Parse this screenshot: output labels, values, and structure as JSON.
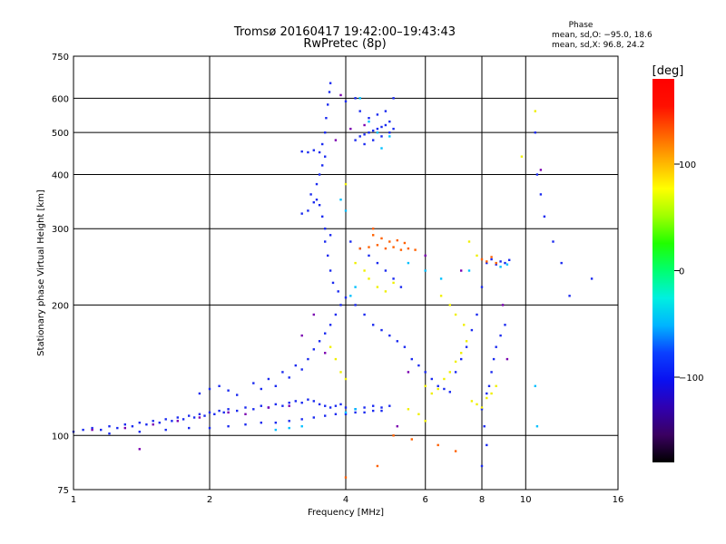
{
  "chart_data": {
    "type": "scatter",
    "title": "Tromsø 20160417 19:42:00–19:43:43",
    "subtitle": "RwPretec (8p)",
    "xlabel": "Frequency [MHz]",
    "ylabel": "Stationary phase Virtual Height [km]",
    "x_scale": "log",
    "y_scale": "log",
    "xlim": [
      1,
      16
    ],
    "ylim": [
      75,
      750
    ],
    "x_ticks": [
      1,
      2,
      4,
      6,
      8,
      10,
      16
    ],
    "x_tick_labels": [
      "1",
      "2",
      "4",
      "6",
      "8",
      "10",
      "16"
    ],
    "y_ticks": [
      75,
      100,
      200,
      300,
      400,
      500,
      600,
      750
    ],
    "y_tick_labels": [
      "75",
      "100",
      "200",
      "300",
      "400",
      "500",
      "600",
      "750"
    ],
    "grid": true,
    "stats": {
      "heading": "Phase",
      "line_o": "mean, sd,O: −95.0, 18.6",
      "line_x": "mean, sd,X:  96.8, 24.2"
    },
    "colorbar": {
      "label": "[deg]",
      "range": [
        -180,
        180
      ],
      "tick_labels": [
        "100",
        "0",
        "−100"
      ],
      "tick_values": [
        100,
        0,
        -100
      ],
      "colors": [
        "#000000",
        "#3a0060",
        "#3000b0",
        "#0a10f0",
        "#0a40ff",
        "#00b4ff",
        "#00f0e0",
        "#00ff70",
        "#20ff00",
        "#a0ff00",
        "#ffff00",
        "#ffb000",
        "#ff6000",
        "#ff1000",
        "#ff0000"
      ]
    },
    "series": [
      {
        "color": "#1a2af0",
        "phase_deg": -100,
        "points": [
          [
            1.0,
            102
          ],
          [
            1.05,
            103
          ],
          [
            1.1,
            104
          ],
          [
            1.15,
            103
          ],
          [
            1.2,
            105
          ],
          [
            1.25,
            104
          ],
          [
            1.3,
            106
          ],
          [
            1.35,
            105
          ],
          [
            1.4,
            107
          ],
          [
            1.45,
            106
          ],
          [
            1.5,
            108
          ],
          [
            1.55,
            107
          ],
          [
            1.6,
            109
          ],
          [
            1.65,
            108
          ],
          [
            1.7,
            110
          ],
          [
            1.75,
            109
          ],
          [
            1.8,
            111
          ],
          [
            1.85,
            110
          ],
          [
            1.9,
            112
          ],
          [
            1.95,
            111
          ],
          [
            2.0,
            113
          ],
          [
            2.05,
            112
          ],
          [
            2.1,
            114
          ],
          [
            2.15,
            113
          ],
          [
            2.2,
            115
          ],
          [
            2.3,
            114
          ],
          [
            2.4,
            116
          ],
          [
            2.5,
            115
          ],
          [
            2.6,
            117
          ],
          [
            2.7,
            116
          ],
          [
            2.8,
            118
          ],
          [
            2.9,
            117
          ],
          [
            3.0,
            119
          ],
          [
            3.1,
            120
          ],
          [
            3.2,
            119
          ],
          [
            3.3,
            121
          ],
          [
            3.4,
            120
          ],
          [
            3.5,
            118
          ],
          [
            3.6,
            117
          ],
          [
            3.7,
            116
          ],
          [
            3.8,
            117
          ],
          [
            3.9,
            118
          ],
          [
            4.0,
            116
          ],
          [
            4.2,
            115
          ],
          [
            4.4,
            116
          ],
          [
            4.6,
            117
          ],
          [
            4.8,
            116
          ],
          [
            5.0,
            117
          ],
          [
            1.2,
            101
          ],
          [
            1.4,
            102
          ],
          [
            1.6,
            103
          ],
          [
            1.8,
            104
          ],
          [
            2.0,
            104
          ],
          [
            2.2,
            105
          ],
          [
            2.4,
            106
          ],
          [
            2.6,
            107
          ],
          [
            2.8,
            107
          ],
          [
            3.0,
            108
          ],
          [
            3.2,
            109
          ],
          [
            3.4,
            110
          ],
          [
            3.6,
            111
          ],
          [
            3.8,
            112
          ],
          [
            4.0,
            112
          ],
          [
            4.2,
            113
          ],
          [
            4.4,
            113
          ],
          [
            4.6,
            114
          ],
          [
            4.8,
            114
          ],
          [
            1.9,
            125
          ],
          [
            2.0,
            128
          ],
          [
            2.1,
            130
          ],
          [
            2.2,
            127
          ],
          [
            2.3,
            124
          ],
          [
            2.5,
            132
          ],
          [
            2.6,
            128
          ],
          [
            2.7,
            135
          ],
          [
            2.8,
            130
          ],
          [
            2.9,
            140
          ],
          [
            3.0,
            136
          ],
          [
            3.1,
            145
          ],
          [
            3.2,
            142
          ],
          [
            3.3,
            150
          ],
          [
            3.4,
            158
          ],
          [
            3.5,
            165
          ],
          [
            3.6,
            172
          ],
          [
            3.7,
            180
          ],
          [
            3.8,
            190
          ],
          [
            3.9,
            200
          ],
          [
            4.0,
            208
          ],
          [
            3.85,
            215
          ],
          [
            3.75,
            225
          ],
          [
            3.7,
            240
          ],
          [
            3.65,
            260
          ],
          [
            3.6,
            280
          ],
          [
            3.7,
            290
          ],
          [
            3.6,
            300
          ],
          [
            3.55,
            320
          ],
          [
            3.5,
            340
          ],
          [
            3.45,
            350
          ],
          [
            3.4,
            345
          ],
          [
            3.3,
            330
          ],
          [
            3.2,
            325
          ],
          [
            3.35,
            360
          ],
          [
            3.45,
            380
          ],
          [
            3.5,
            400
          ],
          [
            3.55,
            420
          ],
          [
            3.6,
            440
          ],
          [
            3.5,
            450
          ],
          [
            3.4,
            455
          ],
          [
            3.3,
            450
          ],
          [
            3.2,
            452
          ],
          [
            3.55,
            470
          ],
          [
            3.6,
            500
          ],
          [
            3.62,
            540
          ],
          [
            3.65,
            580
          ],
          [
            3.68,
            620
          ],
          [
            3.7,
            650
          ],
          [
            4.2,
            480
          ],
          [
            4.3,
            490
          ],
          [
            4.4,
            495
          ],
          [
            4.5,
            500
          ],
          [
            4.6,
            505
          ],
          [
            4.7,
            510
          ],
          [
            4.8,
            515
          ],
          [
            4.9,
            520
          ],
          [
            5.0,
            500
          ],
          [
            5.1,
            510
          ],
          [
            4.4,
            470
          ],
          [
            4.6,
            480
          ],
          [
            4.8,
            490
          ],
          [
            5.0,
            530
          ],
          [
            4.5,
            540
          ],
          [
            4.7,
            550
          ],
          [
            4.9,
            560
          ],
          [
            5.1,
            600
          ],
          [
            4.3,
            560
          ],
          [
            4.2,
            600
          ],
          [
            4.0,
            590
          ],
          [
            4.1,
            280
          ],
          [
            4.3,
            270
          ],
          [
            4.5,
            260
          ],
          [
            4.7,
            250
          ],
          [
            4.9,
            240
          ],
          [
            5.1,
            230
          ],
          [
            5.3,
            220
          ],
          [
            4.2,
            200
          ],
          [
            4.4,
            190
          ],
          [
            4.6,
            180
          ],
          [
            4.8,
            175
          ],
          [
            5.0,
            170
          ],
          [
            5.2,
            165
          ],
          [
            5.4,
            160
          ],
          [
            5.6,
            150
          ],
          [
            5.8,
            145
          ],
          [
            6.0,
            140
          ],
          [
            6.2,
            135
          ],
          [
            6.4,
            130
          ],
          [
            6.6,
            128
          ],
          [
            6.8,
            126
          ],
          [
            7.0,
            140
          ],
          [
            7.2,
            150
          ],
          [
            7.4,
            160
          ],
          [
            7.6,
            175
          ],
          [
            7.8,
            190
          ],
          [
            8.0,
            220
          ],
          [
            8.2,
            250
          ],
          [
            8.4,
            255
          ],
          [
            8.6,
            248
          ],
          [
            8.8,
            252
          ],
          [
            9.0,
            250
          ],
          [
            9.2,
            254
          ],
          [
            9.0,
            180
          ],
          [
            8.8,
            170
          ],
          [
            8.6,
            160
          ],
          [
            8.5,
            150
          ],
          [
            8.4,
            140
          ],
          [
            8.3,
            130
          ],
          [
            8.2,
            125
          ],
          [
            8.0,
            115
          ],
          [
            8.1,
            105
          ],
          [
            8.2,
            95
          ],
          [
            8.0,
            85
          ],
          [
            10.5,
            500
          ],
          [
            10.6,
            400
          ],
          [
            10.8,
            360
          ],
          [
            11.0,
            320
          ],
          [
            11.5,
            280
          ],
          [
            12.0,
            250
          ],
          [
            14.0,
            230
          ],
          [
            12.5,
            210
          ]
        ]
      },
      {
        "color": "#00c0ff",
        "phase_deg": -30,
        "points": [
          [
            2.8,
            103
          ],
          [
            3.0,
            104
          ],
          [
            3.2,
            105
          ],
          [
            4.0,
            113
          ],
          [
            4.2,
            115
          ],
          [
            4.3,
            600
          ],
          [
            4.5,
            530
          ],
          [
            4.7,
            500
          ],
          [
            5.0,
            490
          ],
          [
            4.8,
            460
          ],
          [
            3.9,
            350
          ],
          [
            4.0,
            330
          ],
          [
            4.2,
            220
          ],
          [
            4.1,
            210
          ],
          [
            5.5,
            250
          ],
          [
            6.0,
            240
          ],
          [
            6.5,
            230
          ],
          [
            7.5,
            240
          ],
          [
            8.8,
            245
          ],
          [
            9.1,
            248
          ],
          [
            10.5,
            130
          ],
          [
            10.6,
            105
          ]
        ]
      },
      {
        "color": "#f0f000",
        "phase_deg": 100,
        "points": [
          [
            3.8,
            150
          ],
          [
            3.9,
            140
          ],
          [
            4.0,
            135
          ],
          [
            3.7,
            160
          ],
          [
            4.5,
            230
          ],
          [
            4.7,
            220
          ],
          [
            4.9,
            215
          ],
          [
            5.1,
            225
          ],
          [
            4.2,
            250
          ],
          [
            4.4,
            240
          ],
          [
            6.0,
            130
          ],
          [
            6.2,
            125
          ],
          [
            6.4,
            128
          ],
          [
            6.6,
            135
          ],
          [
            6.8,
            140
          ],
          [
            7.0,
            148
          ],
          [
            7.2,
            155
          ],
          [
            7.4,
            165
          ],
          [
            7.6,
            120
          ],
          [
            7.8,
            118
          ],
          [
            8.0,
            116
          ],
          [
            8.2,
            122
          ],
          [
            8.4,
            125
          ],
          [
            8.6,
            130
          ],
          [
            6.5,
            210
          ],
          [
            6.8,
            200
          ],
          [
            7.0,
            190
          ],
          [
            7.3,
            180
          ],
          [
            5.5,
            115
          ],
          [
            5.8,
            112
          ],
          [
            6.0,
            108
          ],
          [
            7.5,
            280
          ],
          [
            7.8,
            260
          ],
          [
            10.5,
            560
          ],
          [
            9.8,
            440
          ],
          [
            4.0,
            380
          ]
        ]
      },
      {
        "color": "#ff6000",
        "phase_deg": 150,
        "points": [
          [
            4.3,
            270
          ],
          [
            4.5,
            272
          ],
          [
            4.7,
            275
          ],
          [
            4.9,
            270
          ],
          [
            5.1,
            272
          ],
          [
            5.3,
            268
          ],
          [
            5.5,
            270
          ],
          [
            5.7,
            268
          ],
          [
            4.6,
            290
          ],
          [
            4.8,
            285
          ],
          [
            5.0,
            280
          ],
          [
            5.2,
            282
          ],
          [
            5.4,
            278
          ],
          [
            8.0,
            255
          ],
          [
            8.2,
            252
          ],
          [
            8.4,
            258
          ],
          [
            8.6,
            250
          ],
          [
            4.6,
            300
          ],
          [
            5.1,
            100
          ],
          [
            5.6,
            98
          ],
          [
            6.4,
            95
          ],
          [
            7.0,
            92
          ],
          [
            4.7,
            85
          ],
          [
            4.0,
            80
          ]
        ]
      },
      {
        "color": "#7a00b0",
        "phase_deg": -150,
        "points": [
          [
            1.1,
            103
          ],
          [
            1.3,
            104
          ],
          [
            1.5,
            106
          ],
          [
            1.7,
            108
          ],
          [
            1.9,
            110
          ],
          [
            2.2,
            113
          ],
          [
            2.4,
            112
          ],
          [
            2.7,
            116
          ],
          [
            3.0,
            117
          ],
          [
            3.2,
            170
          ],
          [
            3.4,
            190
          ],
          [
            3.6,
            155
          ],
          [
            3.8,
            480
          ],
          [
            4.1,
            510
          ],
          [
            4.4,
            520
          ],
          [
            5.5,
            140
          ],
          [
            6.0,
            260
          ],
          [
            7.2,
            240
          ],
          [
            8.9,
            200
          ],
          [
            9.1,
            150
          ],
          [
            10.8,
            410
          ],
          [
            1.4,
            93
          ],
          [
            5.2,
            105
          ],
          [
            3.9,
            610
          ]
        ]
      }
    ]
  }
}
